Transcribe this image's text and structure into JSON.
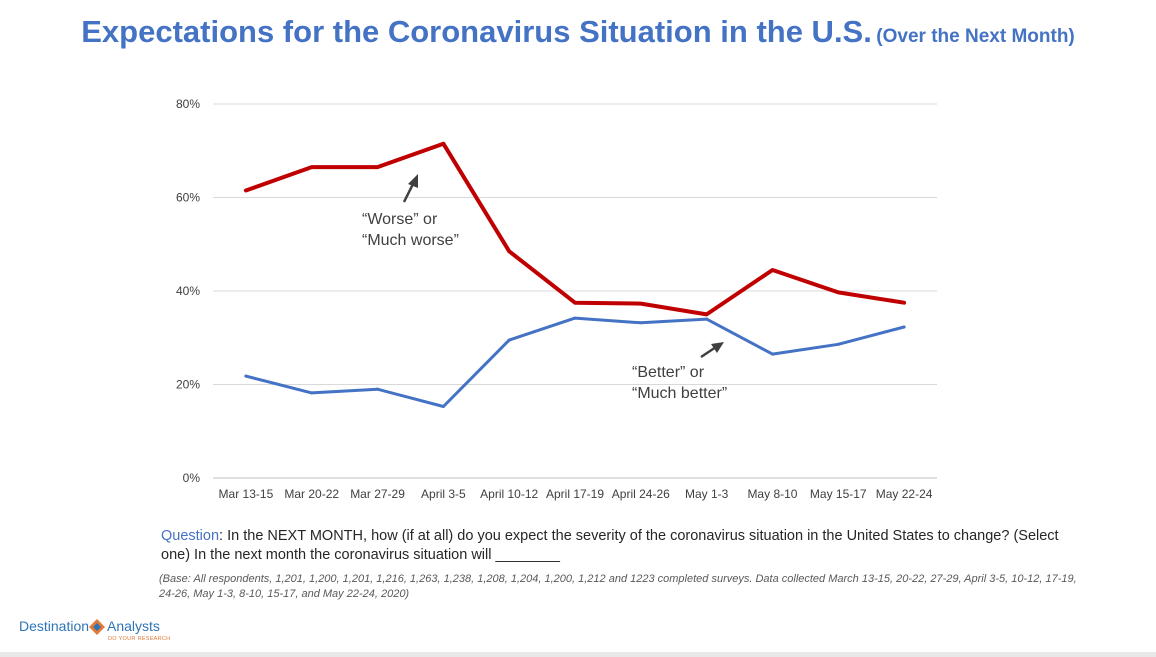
{
  "title": {
    "main": "Expectations for the Coronavirus Situation in the U.S.",
    "sub": "(Over the Next Month)"
  },
  "chart_data": {
    "type": "line",
    "categories": [
      "Mar 13-15",
      "Mar 20-22",
      "Mar 27-29",
      "April 3-5",
      "April 10-12",
      "April 17-19",
      "April 24-26",
      "May 1-3",
      "May 8-10",
      "May 15-17",
      "May 22-24"
    ],
    "series": [
      {
        "name": "Worse or Much worse",
        "color": "#c00000",
        "values": [
          61.5,
          66.5,
          66.5,
          71.5,
          48.5,
          37.5,
          37.3,
          35.0,
          44.5,
          39.7,
          37.5
        ]
      },
      {
        "name": "Better or Much better",
        "color": "#4472c4",
        "values": [
          21.8,
          18.2,
          19.0,
          15.3,
          29.5,
          34.2,
          33.2,
          34.0,
          26.5,
          28.6,
          32.3
        ]
      }
    ],
    "ylim": [
      0,
      80
    ],
    "yticks": [
      0,
      20,
      40,
      60,
      80
    ],
    "ytick_labels": [
      "0%",
      "20%",
      "40%",
      "60%",
      "80%"
    ],
    "grid": true,
    "annotations": [
      {
        "lines": [
          "“Worse” or",
          "“Much worse”"
        ]
      },
      {
        "lines": [
          "“Better” or",
          "“Much better”"
        ]
      }
    ]
  },
  "question": {
    "label": "Question",
    "text": ": In the NEXT MONTH, how (if at all) do you expect the severity of the coronavirus situation in the United States to change? (Select one) In the next month the coronavirus situation will ________"
  },
  "base_note": "(Base: All respondents, 1,201, 1,200, 1,201, 1,216, 1,263, 1,238, 1,208, 1,204, 1,200, 1,212 and 1223 completed surveys. Data collected March 13-15, 20-22, 27-29, April 3-5, 10-12, 17-19, 24-26, May 1-3, 8-10, 15-17, and May 22-24, 2020)",
  "logo": {
    "left": "Destination",
    "right": "Analysts",
    "tagline": "DO YOUR RESEARCH",
    "colors": {
      "blue": "#2e75b6",
      "orange": "#e07b39"
    }
  }
}
